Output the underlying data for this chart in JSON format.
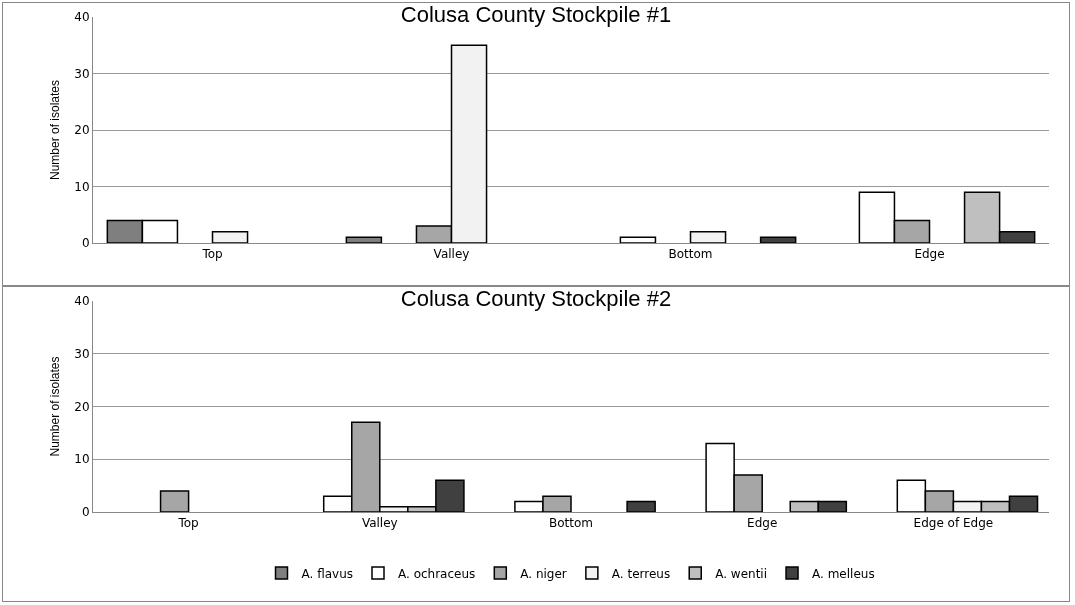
{
  "chart_data": [
    {
      "type": "bar",
      "title": "Colusa County Stockpile #1",
      "ylabel": "Number of isolates",
      "categories": [
        "Top",
        "Valley",
        "Bottom",
        "Edge"
      ],
      "ylim": [
        0,
        40
      ],
      "yticks": [
        0,
        10,
        20,
        30,
        40
      ],
      "grid": "y",
      "legend": false,
      "series": [
        {
          "color": "#7f7f7f",
          "values": [
            4,
            1,
            0,
            0
          ]
        },
        {
          "color": "#ffffff",
          "values": [
            4,
            0,
            1,
            9
          ]
        },
        {
          "color": "#a6a6a6",
          "values": [
            0,
            3,
            0,
            4
          ]
        },
        {
          "color": "#f2f2f2",
          "values": [
            2,
            35,
            2,
            0
          ]
        },
        {
          "color": "#bfbfbf",
          "values": [
            0,
            0,
            0,
            9
          ]
        },
        {
          "color": "#404040",
          "values": [
            0,
            0,
            1,
            2
          ]
        }
      ]
    },
    {
      "type": "bar",
      "title": "Colusa County Stockpile #2",
      "ylabel": "Number of isolates",
      "categories": [
        "Top",
        "Valley",
        "Bottom",
        "Edge",
        "Edge of Edge"
      ],
      "ylim": [
        0,
        40
      ],
      "yticks": [
        0,
        10,
        20,
        30,
        40
      ],
      "grid": "y",
      "legend": "bottom",
      "series": [
        {
          "name": "A. flavus",
          "color": "#7f7f7f",
          "values": [
            0,
            0,
            0,
            0,
            0
          ]
        },
        {
          "name": "A. ochraceus",
          "color": "#ffffff",
          "values": [
            0,
            3,
            2,
            13,
            6
          ]
        },
        {
          "name": "A. niger",
          "color": "#a6a6a6",
          "values": [
            4,
            17,
            3,
            7,
            4
          ]
        },
        {
          "name": "A. terreus",
          "color": "#f2f2f2",
          "values": [
            0,
            1,
            0,
            0,
            2
          ]
        },
        {
          "name": "A. wentii",
          "color": "#bfbfbf",
          "values": [
            0,
            1,
            0,
            2,
            2
          ]
        },
        {
          "name": "A. melleus",
          "color": "#404040",
          "values": [
            0,
            6,
            2,
            2,
            3
          ]
        }
      ]
    }
  ]
}
